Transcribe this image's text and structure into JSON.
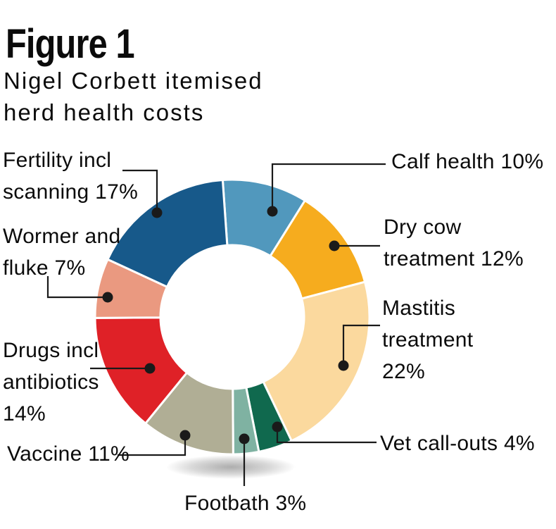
{
  "figure": {
    "label": "Figure 1",
    "title_line1": "Nigel Corbett itemised",
    "title_line2": "herd health costs"
  },
  "chart_data": {
    "type": "pie",
    "subtype": "donut",
    "title": "Nigel Corbett itemised herd health costs",
    "start_angle_deg": -4,
    "direction": "clockwise",
    "total_pct": 100,
    "callout_color": "#1a1a1a",
    "background_color": "#ffffff",
    "slices": [
      {
        "label": "Calf health",
        "pct": 10,
        "color": "#5198BD",
        "label_lines": [
          "Calf health 10%"
        ]
      },
      {
        "label": "Dry cow treatment",
        "pct": 12,
        "color": "#F6AC1E",
        "label_lines": [
          "Dry cow",
          "treatment 12%"
        ]
      },
      {
        "label": "Mastitis treatment",
        "pct": 22,
        "color": "#FBD99E",
        "label_lines": [
          "Mastitis",
          "treatment",
          "22%"
        ]
      },
      {
        "label": "Vet call-outs",
        "pct": 4,
        "color": "#10694E",
        "label_lines": [
          "Vet call-outs 4%"
        ]
      },
      {
        "label": "Footbath",
        "pct": 3,
        "color": "#7FB2A2",
        "label_lines": [
          "Footbath 3%"
        ]
      },
      {
        "label": "Vaccine",
        "pct": 11,
        "color": "#B0AE95",
        "label_lines": [
          "Vaccine 11%"
        ]
      },
      {
        "label": "Drugs incl antibiotics",
        "pct": 14,
        "color": "#DF2127",
        "label_lines": [
          "Drugs incl",
          "antibiotics",
          "14%"
        ]
      },
      {
        "label": "Wormer and fluke",
        "pct": 7,
        "color": "#EA9980",
        "label_lines": [
          "Wormer and",
          "fluke 7%"
        ]
      },
      {
        "label": "Fertility incl scanning",
        "pct": 17,
        "color": "#17598A",
        "label_lines": [
          "Fertility incl",
          "scanning 17%"
        ]
      }
    ]
  }
}
